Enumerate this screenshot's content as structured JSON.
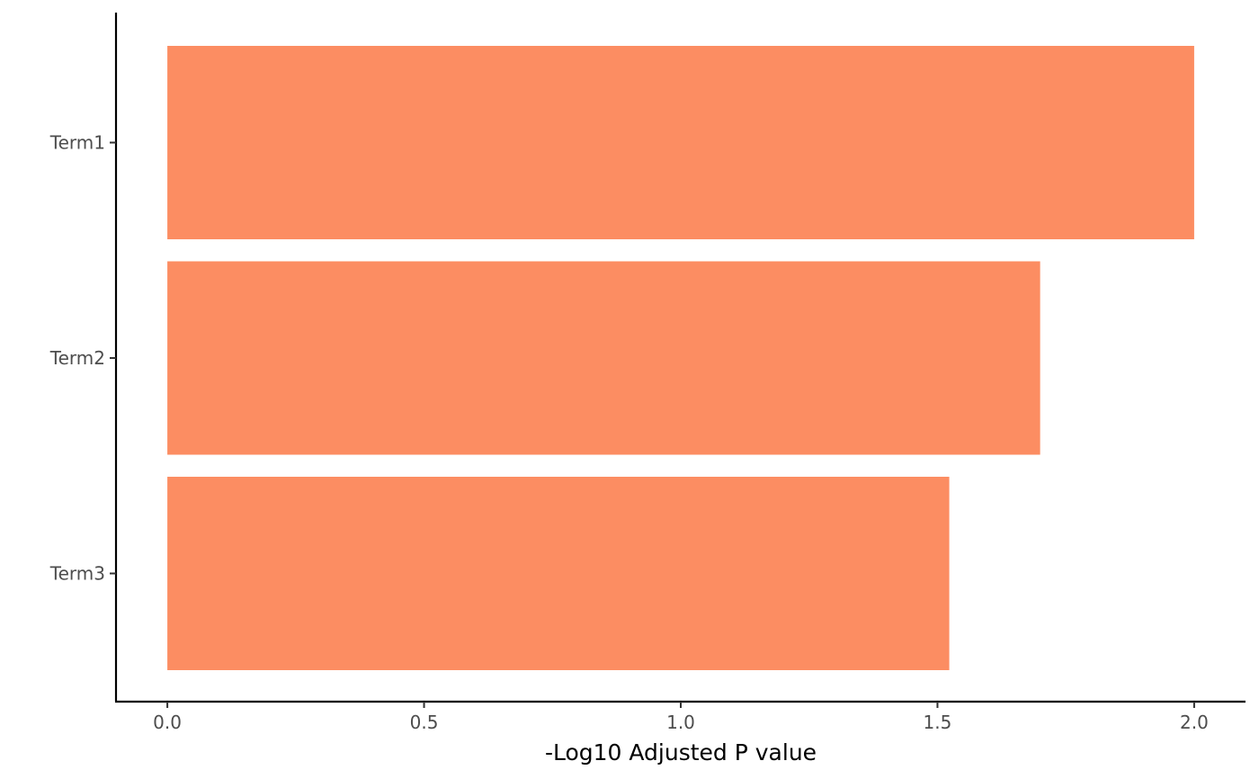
{
  "chart_data": {
    "type": "bar",
    "orientation": "horizontal",
    "categories": [
      "Term1",
      "Term2",
      "Term3"
    ],
    "values": [
      2.0,
      1.7,
      1.523
    ],
    "title": "",
    "xlabel": "-Log10 Adjusted P value",
    "ylabel": "",
    "xlim": [
      -0.1,
      2.1
    ],
    "x_ticks": [
      0.0,
      0.5,
      1.0,
      1.5,
      2.0
    ],
    "x_tick_labels": [
      "0.0",
      "0.5",
      "1.0",
      "1.5",
      "2.0"
    ],
    "bar_color": "#fc8d62",
    "grid": false,
    "legend": "none"
  }
}
